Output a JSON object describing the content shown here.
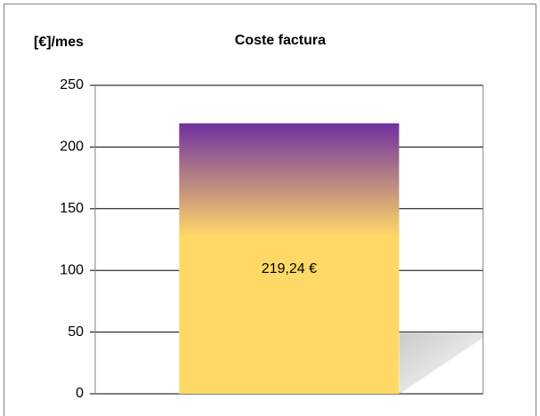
{
  "chart_data": {
    "type": "bar",
    "title": "Coste factura",
    "ylabel": "[€]/mes",
    "categories": [
      null
    ],
    "values": [
      219.24
    ],
    "value_labels": [
      "219,24 €"
    ],
    "ylim": [
      0,
      250
    ],
    "yticks": [
      0,
      50,
      100,
      150,
      200,
      250
    ],
    "grid": true
  }
}
